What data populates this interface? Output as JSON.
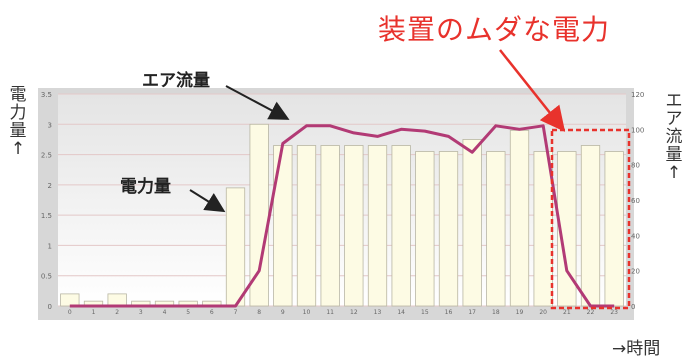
{
  "chart_data": {
    "type": "bar",
    "title": "装置のムダな電力",
    "ylabel": "電力量↑",
    "y2label": "エア流量↑",
    "xlabel": "→時間",
    "annotations": [
      "エア流量",
      "電力量"
    ],
    "ylim": [
      0,
      3.5
    ],
    "yticks": [
      0,
      0.5,
      1,
      1.5,
      2,
      2.5,
      3,
      3.5
    ],
    "y2lim": [
      0,
      120
    ],
    "y2ticks": [
      0,
      20,
      40,
      60,
      80,
      100,
      120
    ],
    "categories": [
      "0",
      "1",
      "2",
      "3",
      "4",
      "5",
      "6",
      "7",
      "8",
      "9",
      "10",
      "11",
      "12",
      "13",
      "14",
      "15",
      "16",
      "17",
      "18",
      "19",
      "20",
      "21",
      "22",
      "23"
    ],
    "series": [
      {
        "axis": "left",
        "kind": "bar",
        "values": [
          0.2,
          0.08,
          0.2,
          0.08,
          0.08,
          0.08,
          0.08,
          1.95,
          3.0,
          2.65,
          2.65,
          2.65,
          2.65,
          2.65,
          2.65,
          2.55,
          2.55,
          2.75,
          2.55,
          2.9,
          2.55,
          2.55,
          2.65,
          2.55
        ]
      },
      {
        "axis": "right",
        "kind": "line",
        "values": [
          0,
          0,
          0,
          0,
          0,
          0,
          0,
          0,
          20,
          92,
          102,
          102,
          98,
          96,
          100,
          99,
          96,
          87,
          102,
          100,
          102,
          20,
          0,
          0
        ]
      }
    ],
    "colors": {
      "bar_fill": "#fdfbe4",
      "bar_stroke": "#b8b6a3",
      "line": "#b23a75",
      "highlight": "#e8322c",
      "grid": "#e3c8c8"
    },
    "highlight_range": [
      21,
      23
    ]
  }
}
